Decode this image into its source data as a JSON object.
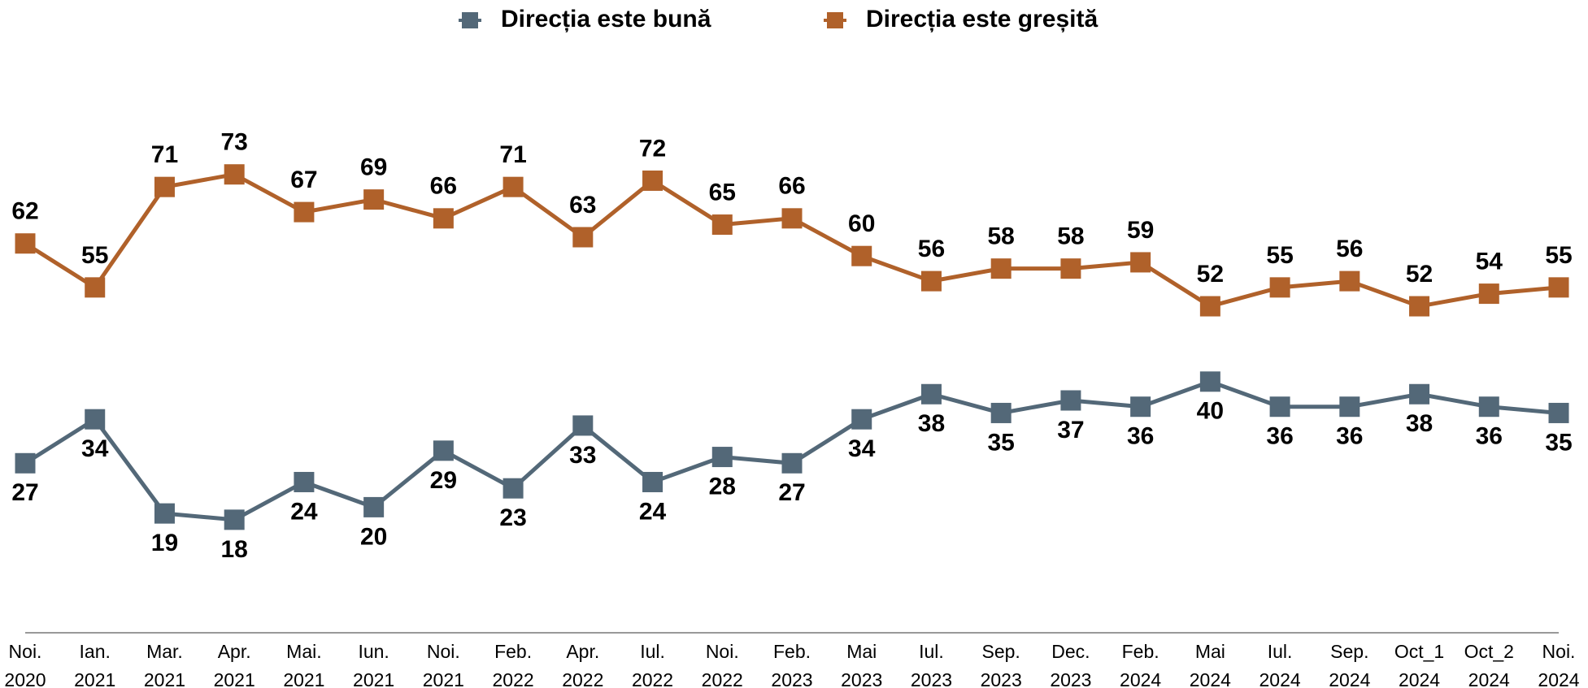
{
  "chart_data": {
    "type": "line",
    "categories": [
      "Noi.\n2020",
      "Ian.\n2021",
      "Mar.\n2021",
      "Apr.\n2021",
      "Mai.\n2021",
      "Iun.\n2021",
      "Noi.\n2021",
      "Feb.\n2022",
      "Apr.\n2022",
      "Iul.\n2022",
      "Noi.\n2022",
      "Feb.\n2023",
      "Mai\n2023",
      "Iul.\n2023",
      "Sep.\n2023",
      "Dec.\n2023",
      "Feb.\n2024",
      "Mai\n2024",
      "Iul.\n2024",
      "Sep.\n2024",
      "Oct_1\n2024",
      "Oct_2\n2024",
      "Noi.\n2024"
    ],
    "series": [
      {
        "name": "Direcția este bună",
        "color": "#536878",
        "label_position": "below",
        "values": [
          27,
          34,
          19,
          18,
          24,
          20,
          29,
          23,
          33,
          24,
          28,
          27,
          34,
          38,
          35,
          37,
          36,
          40,
          36,
          36,
          38,
          36,
          35
        ]
      },
      {
        "name": "Direcția este greșită",
        "color": "#b0612a",
        "label_position": "above",
        "values": [
          62,
          55,
          71,
          73,
          67,
          69,
          66,
          71,
          63,
          72,
          65,
          66,
          60,
          56,
          58,
          58,
          59,
          52,
          55,
          56,
          52,
          54,
          55
        ]
      }
    ],
    "ylim": [
      0,
      100
    ],
    "legend": "top"
  }
}
